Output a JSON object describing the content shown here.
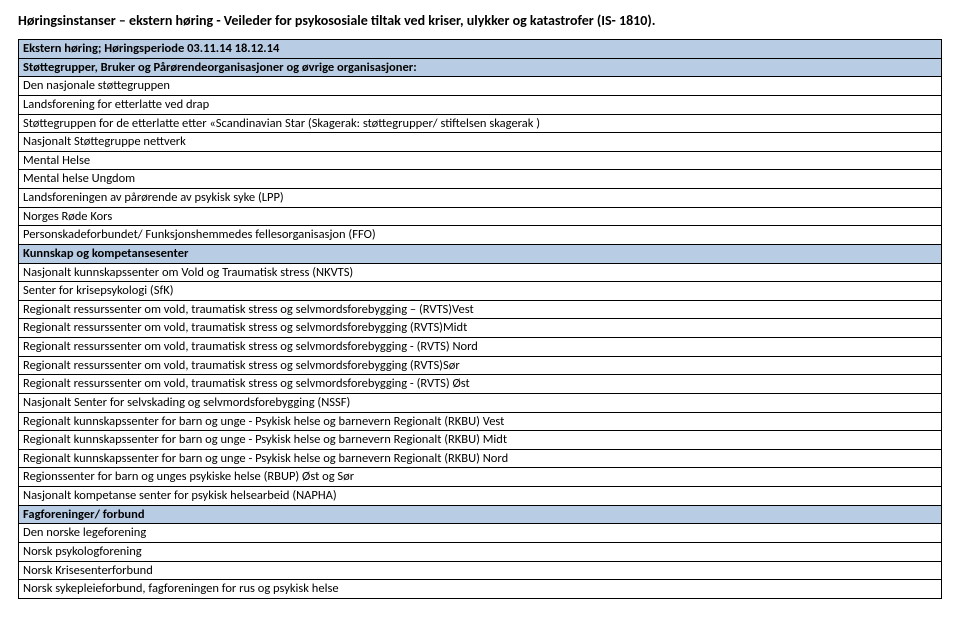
{
  "title": "Høringsinstanser – ekstern høring - Veileder for psykososiale tiltak ved kriser, ulykker og katastrofer (IS- 1810).",
  "colors": {
    "section_bg": "#b8cce4",
    "border": "#000000",
    "text": "#000000",
    "page_bg": "#ffffff"
  },
  "periodHeader": "Ekstern høring; Høringsperiode 03.11.14  18.12.14",
  "sections": [
    {
      "heading": "Støttegrupper, Bruker og Pårørendeorganisasjoner og øvrige organisasjoner:",
      "rows": [
        "Den nasjonale støttegruppen",
        "Landsforening for etterlatte ved drap",
        "Støttegruppen for de etterlatte etter «Scandinavian Star (Skagerak: støttegrupper/ stiftelsen skagerak )",
        "Nasjonalt Støttegruppe nettverk",
        "Mental Helse",
        "Mental helse Ungdom",
        "Landsforeningen av pårørende av psykisk syke (LPP)",
        "Norges Røde Kors",
        "Personskadeforbundet/ Funksjonshemmedes fellesorganisasjon (FFO)"
      ]
    },
    {
      "heading": "Kunnskap og kompetansesenter",
      "rows": [
        "Nasjonalt kunnskapssenter om Vold og Traumatisk stress (NKVTS)",
        "Senter for krisepsykologi (SfK)",
        "Regionalt ressurssenter om vold, traumatisk stress og selvmordsforebygging – (RVTS)Vest",
        "Regionalt ressurssenter om vold, traumatisk stress og selvmordsforebygging (RVTS)Midt",
        "Regionalt ressurssenter om vold, traumatisk stress og selvmordsforebygging -  (RVTS) Nord",
        "Regionalt ressurssenter om vold, traumatisk stress og selvmordsforebygging (RVTS)Sør",
        "Regionalt ressurssenter om vold, traumatisk stress og selvmordsforebygging -  (RVTS) Øst",
        "Nasjonalt Senter for selvskading og selvmordsforebygging (NSSF)",
        "Regionalt kunnskapssenter for barn og unge - Psykisk helse og barnevern Regionalt (RKBU) Vest",
        "Regionalt kunnskapssenter for barn og unge - Psykisk helse og barnevern Regionalt (RKBU) Midt",
        "Regionalt kunnskapssenter for barn og unge - Psykisk helse og barnevern Regionalt (RKBU) Nord",
        "Regionssenter for barn og unges psykiske helse (RBUP) Øst og Sør",
        "Nasjonalt kompetanse senter for psykisk helsearbeid (NAPHA)"
      ]
    },
    {
      "heading": "Fagforeninger/ forbund",
      "rows": [
        "Den norske legeforening",
        "Norsk psykologforening",
        "Norsk Krisesenterforbund",
        "Norsk sykepleieforbund, fagforeningen for rus og psykisk helse"
      ]
    }
  ]
}
